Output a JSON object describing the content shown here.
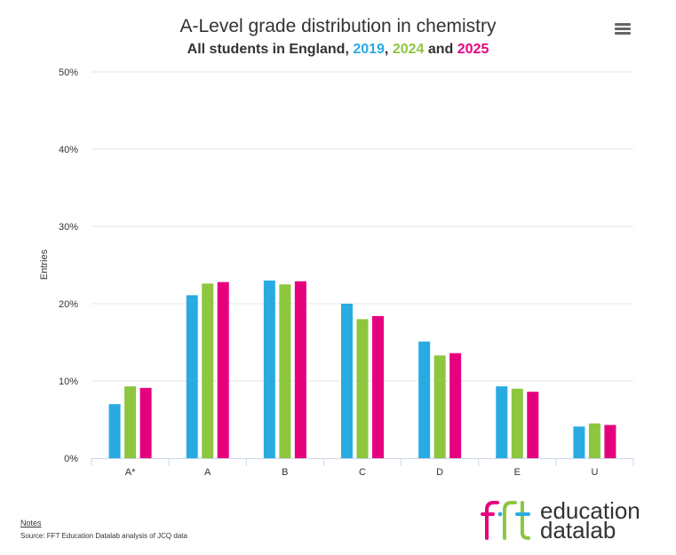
{
  "chart_data": {
    "type": "bar",
    "title": "A-Level grade distribution in chemistry",
    "subtitle": {
      "prefix": "All students in England, ",
      "y1": "2019",
      "sep1": ", ",
      "y2": "2024",
      "sep2": " and ",
      "y3": "2025"
    },
    "xlabel": "",
    "ylabel": "Entries",
    "ylim": [
      0,
      50
    ],
    "yticks": [
      "0%",
      "10%",
      "20%",
      "30%",
      "40%",
      "50%"
    ],
    "categories": [
      "A*",
      "A",
      "B",
      "C",
      "D",
      "E",
      "U"
    ],
    "series": [
      {
        "name": "2019",
        "color": "#29abe2",
        "values": [
          7.0,
          21.1,
          23.0,
          20.0,
          15.1,
          9.3,
          4.1
        ]
      },
      {
        "name": "2024",
        "color": "#8dc63f",
        "values": [
          9.3,
          22.6,
          22.5,
          18.0,
          13.3,
          9.0,
          4.5
        ]
      },
      {
        "name": "2025",
        "color": "#e6007e",
        "values": [
          9.1,
          22.8,
          22.9,
          18.4,
          13.6,
          8.6,
          4.3
        ]
      }
    ]
  },
  "footer": {
    "notes": "Notes",
    "source": "Source: FFT Education Datalab analysis of JCQ data"
  },
  "logo": {
    "mark": "fft",
    "line1": "education",
    "line2": "datalab"
  },
  "icons": {
    "menu": "hamburger-menu-icon"
  }
}
